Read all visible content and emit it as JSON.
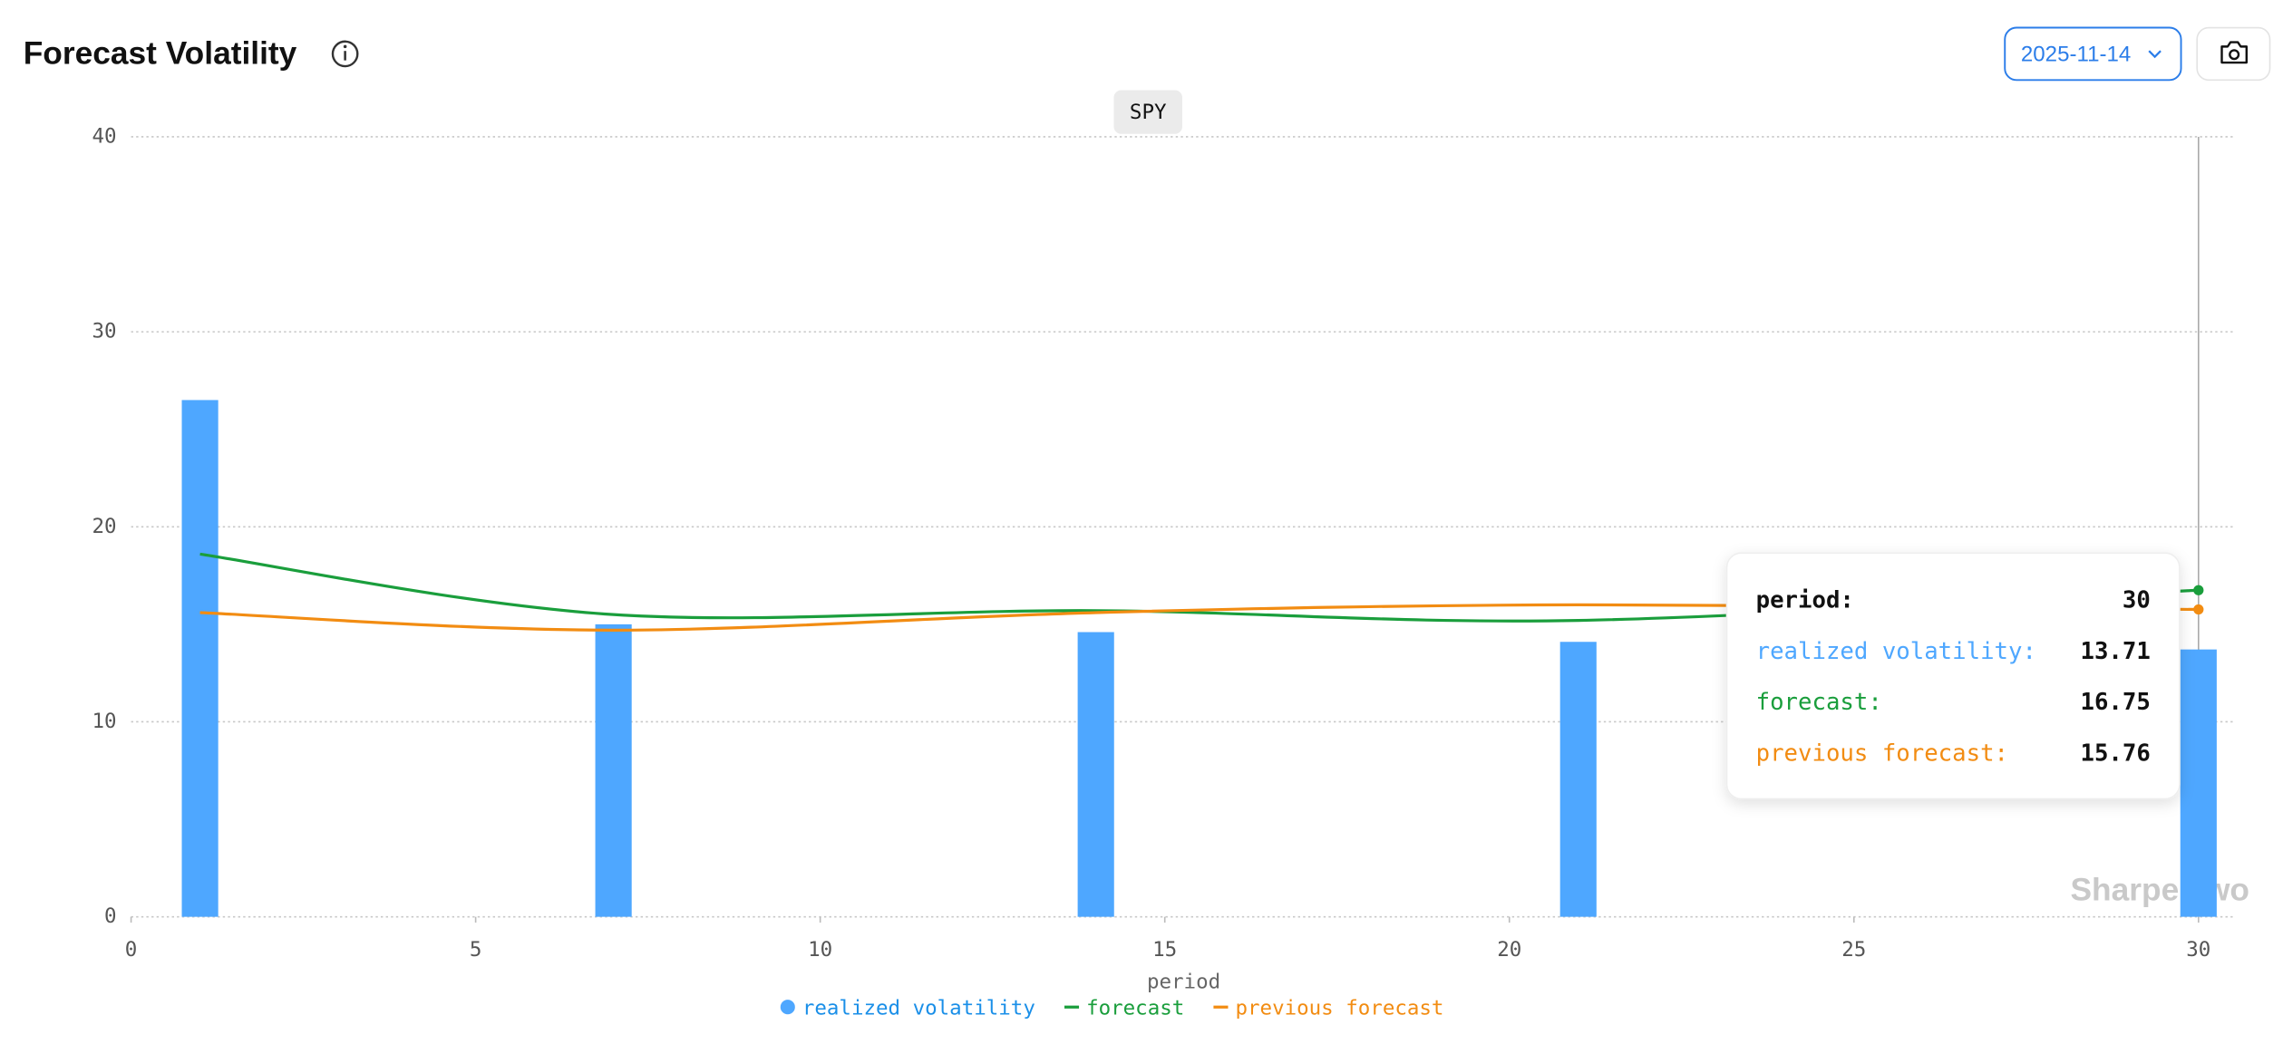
{
  "header": {
    "title": "Forecast Volatility",
    "date": "2025-11-14"
  },
  "chart_data": {
    "type": "bar-line",
    "subtitle": "SPY",
    "x_label": "period",
    "watermark": "Sharpe Two",
    "x": [
      1,
      7,
      14,
      21,
      30
    ],
    "series": [
      {
        "name": "realized volatility",
        "type": "bar",
        "color": "#4ea7ff",
        "values": [
          26.5,
          15.0,
          14.6,
          14.1,
          13.71
        ]
      },
      {
        "name": "forecast",
        "type": "line",
        "color": "#1a9e3c",
        "values": [
          18.6,
          15.5,
          15.7,
          15.2,
          16.75
        ]
      },
      {
        "name": "previous forecast",
        "type": "line",
        "color": "#f28c12",
        "values": [
          15.6,
          14.7,
          15.6,
          16.0,
          15.76
        ]
      }
    ],
    "xlim": [
      0,
      30
    ],
    "xticks": [
      0,
      5,
      10,
      15,
      20,
      25,
      30
    ],
    "ylim": [
      0,
      40
    ],
    "yticks": [
      0,
      10,
      20,
      30,
      40
    ],
    "grid": true,
    "tooltip": {
      "index": 4,
      "period_label": "period:",
      "labels": [
        "realized volatility:",
        "forecast:",
        "previous forecast:"
      ]
    }
  }
}
